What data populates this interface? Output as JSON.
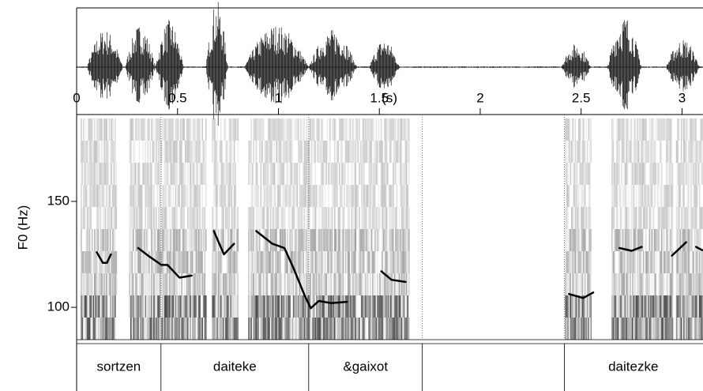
{
  "chart_data": {
    "type": "pitch",
    "xlabel": "(s)",
    "ylabel": "F0 (Hz)",
    "xlim": [
      0,
      3.1
    ],
    "xticks": [
      0,
      0.5,
      1,
      1.5,
      2,
      2.5,
      3
    ],
    "ylim": [
      84,
      191
    ],
    "yticks": [
      100,
      150
    ],
    "series": [
      {
        "name": null,
        "color": "#000000",
        "x": [
          0.1,
          0.13,
          0.15,
          0.17,
          0.24,
          0.305,
          0.36,
          0.42,
          0.45,
          0.51,
          0.57,
          0.62,
          0.68,
          0.73,
          0.78,
          0.84,
          0.89,
          0.97,
          1.03,
          1.075,
          1.13,
          1.16,
          1.2,
          1.26,
          1.34,
          1.45,
          1.51,
          1.56,
          1.63,
          2.0,
          2.44,
          2.51,
          2.56,
          2.62,
          2.69,
          2.75,
          2.8,
          2.88,
          2.95,
          3.02,
          3.05,
          3.07,
          3.1
        ],
        "values": [
          126,
          121,
          121,
          125,
          null,
          128,
          124,
          120,
          120,
          114,
          115,
          null,
          136,
          125,
          130,
          null,
          136,
          130,
          128,
          118.5,
          105.6,
          99.6,
          103,
          102,
          102.6,
          null,
          117,
          113,
          112,
          null,
          106.3,
          104.4,
          107,
          null,
          128,
          126.7,
          128.5,
          null,
          124.4,
          130.7,
          null,
          128.5,
          127
        ]
      }
    ],
    "tier": {
      "labels": [
        "sortzen",
        "daiteke",
        "&gaixot",
        null,
        "daitezke"
      ],
      "boundaries": [
        0.418,
        1.15,
        1.713,
        2.417
      ]
    }
  }
}
